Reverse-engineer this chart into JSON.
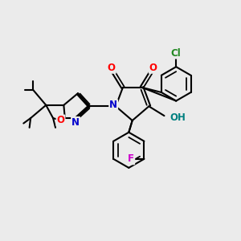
{
  "bg_color": "#ebebeb",
  "bond_color": "#000000",
  "bond_width": 1.5,
  "atom_colors": {
    "O": "#ff0000",
    "N": "#0000cc",
    "F": "#cc00cc",
    "Cl": "#228822",
    "OH": "#008080",
    "C": "#000000"
  },
  "font_size_atom": 8.5
}
